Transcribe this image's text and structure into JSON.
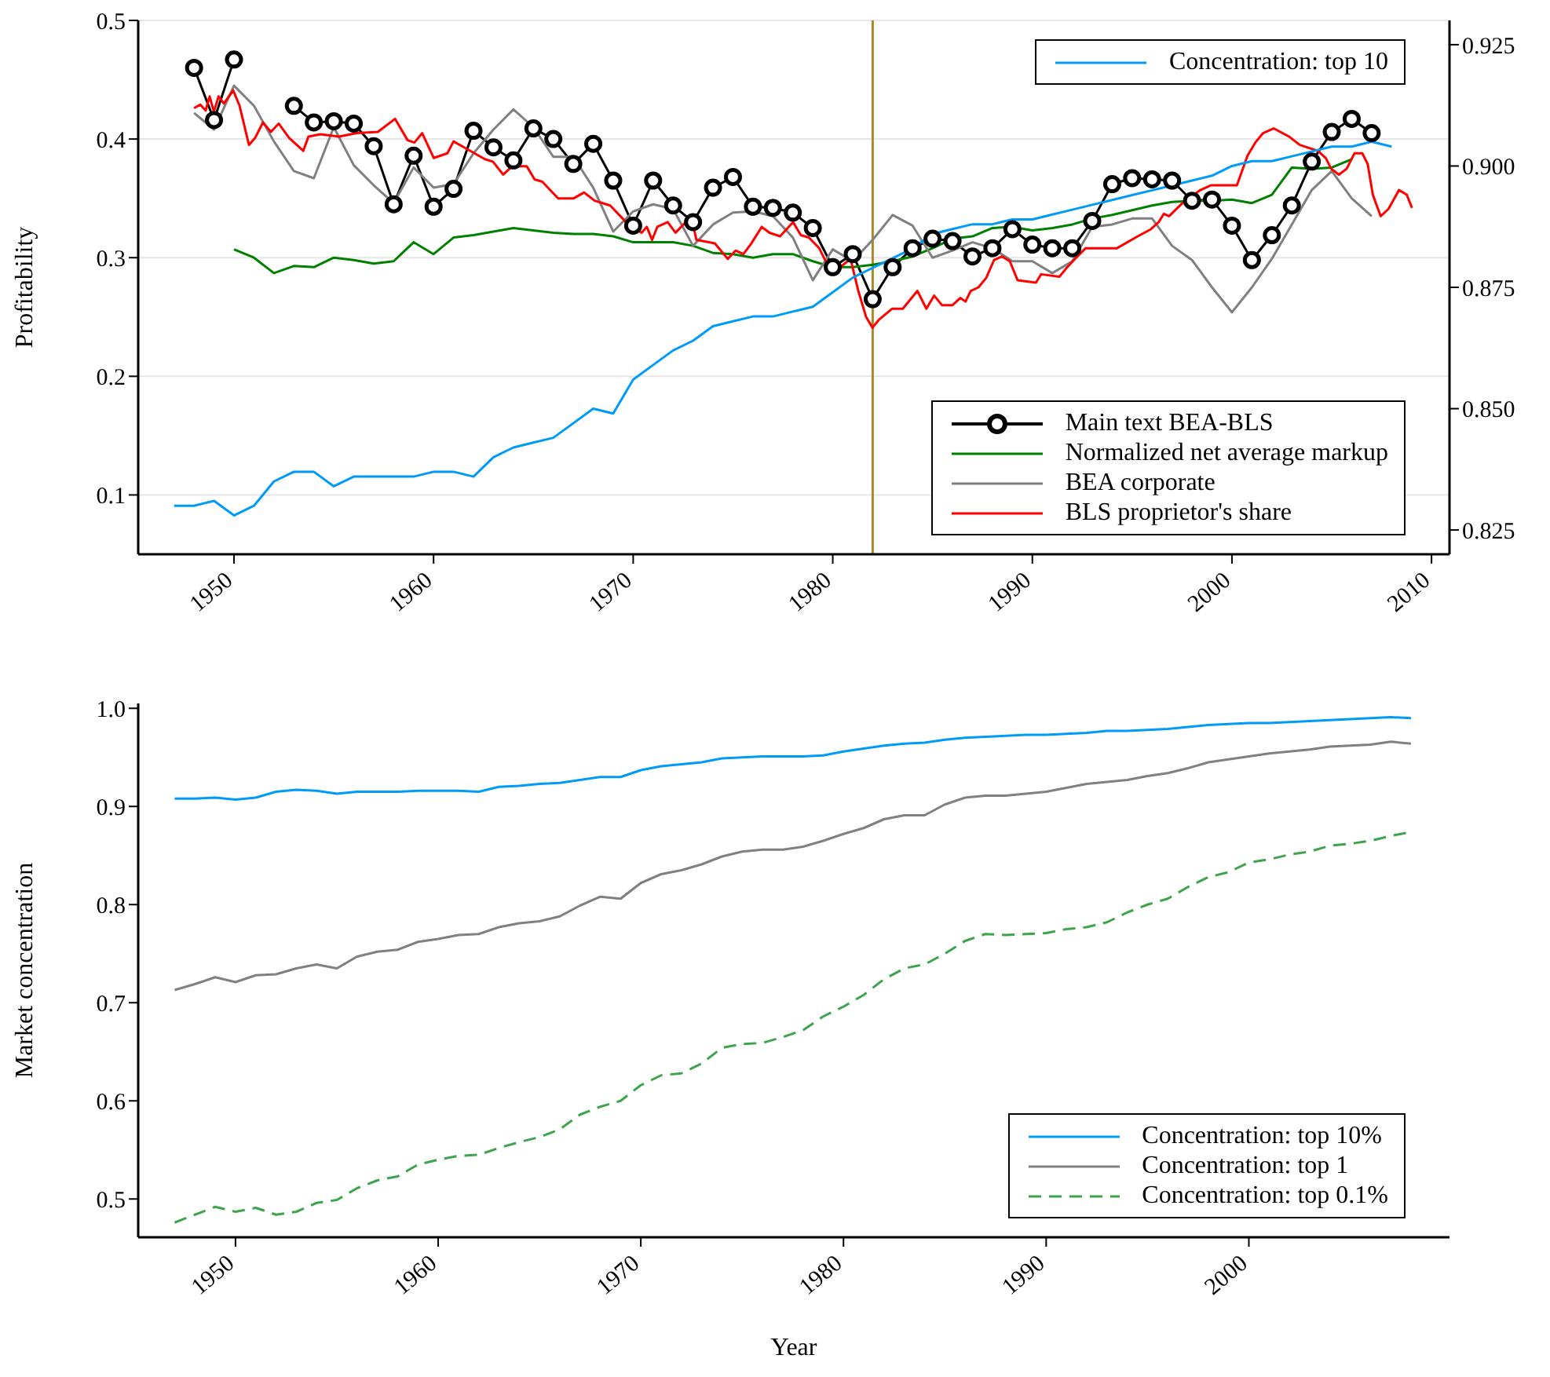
{
  "chart_data": [
    {
      "type": "line",
      "ylabel": "Profitability",
      "xlim": [
        1945.2,
        2010.9
      ],
      "xticks": [
        1950,
        1960,
        1970,
        1980,
        1990,
        2000,
        2010
      ],
      "ylim": [
        0.05,
        0.5
      ],
      "yticks": [
        0.1,
        0.2,
        0.3,
        0.4,
        0.5
      ],
      "y2lim": [
        0.82,
        0.93
      ],
      "y2ticks": [
        0.825,
        {
          "value": 0.85,
          "label": "0.850"
        },
        0.875,
        {
          "value": 0.9,
          "label": "0.900"
        },
        0.925
      ],
      "grid": "y",
      "legend": "bottom right",
      "ref_lines": [
        {
          "axis": "x",
          "value": 1982,
          "color": "#a8892c"
        }
      ],
      "series": [
        {
          "name": "Main text BEA-BLS",
          "color": "#000000",
          "marker": "circle",
          "x": [
            1948,
            1949,
            1950,
            1951,
            1952,
            1953,
            1954,
            1955,
            1956,
            1957,
            1958,
            1959,
            1960,
            1961,
            1962,
            1963,
            1964,
            1965,
            1966,
            1967,
            1968,
            1969,
            1970,
            1971,
            1972,
            1973,
            1974,
            1975,
            1976,
            1977,
            1978,
            1979,
            1980,
            1981,
            1982,
            1983,
            1984,
            1985,
            1986,
            1987,
            1988,
            1989,
            1990,
            1991,
            1992,
            1993,
            1994,
            1995,
            1996,
            1997,
            1998,
            1999,
            2000,
            2001,
            2002,
            2003,
            2004,
            2005,
            2006,
            2007
          ],
          "values": [
            0.46,
            0.416,
            0.467,
            null,
            null,
            0.428,
            0.414,
            0.415,
            0.413,
            0.394,
            0.345,
            0.386,
            0.343,
            0.358,
            0.407,
            0.393,
            0.382,
            0.409,
            0.4,
            0.379,
            0.396,
            0.365,
            0.327,
            0.365,
            0.344,
            0.33,
            0.359,
            0.368,
            0.343,
            0.342,
            0.338,
            0.325,
            0.292,
            0.303,
            0.265,
            0.292,
            0.308,
            0.316,
            0.314,
            0.301,
            0.308,
            0.324,
            0.311,
            0.308,
            0.308,
            0.331,
            0.362,
            0.367,
            0.366,
            0.365,
            0.348,
            0.349,
            0.327,
            0.298,
            0.319,
            0.344,
            0.381,
            0.406,
            0.417,
            0.405
          ]
        },
        {
          "name": "Normalized net average markup",
          "color": "#008000",
          "x": [
            1950,
            1951,
            1952,
            1953,
            1954,
            1955,
            1956,
            1957,
            1958,
            1959,
            1960,
            1961,
            1962,
            1963,
            1964,
            1965,
            1966,
            1967,
            1968,
            1969,
            1970,
            1971,
            1972,
            1973,
            1974,
            1975,
            1976,
            1977,
            1978,
            1979,
            1980,
            1981,
            1982,
            1983,
            1984,
            1985,
            1986,
            1987,
            1988,
            1989,
            1990,
            1991,
            1992,
            1993,
            1994,
            1995,
            1996,
            1997,
            1998,
            1999,
            2000,
            2001,
            2002,
            2003,
            2004,
            2005,
            2006
          ],
          "values": [
            0.307,
            0.3,
            0.287,
            0.293,
            0.292,
            0.3,
            0.298,
            0.295,
            0.297,
            0.313,
            0.303,
            0.317,
            0.319,
            0.322,
            0.325,
            0.323,
            0.321,
            0.32,
            0.32,
            0.318,
            0.313,
            0.313,
            0.313,
            0.31,
            0.304,
            0.303,
            0.3,
            0.303,
            0.303,
            0.297,
            0.292,
            0.292,
            0.294,
            0.297,
            0.301,
            0.308,
            0.316,
            0.318,
            0.325,
            0.326,
            0.323,
            0.325,
            0.328,
            0.333,
            0.336,
            0.34,
            0.344,
            0.347,
            0.348,
            0.348,
            0.349,
            0.346,
            0.353,
            0.376,
            0.375,
            0.376,
            0.383
          ]
        },
        {
          "name": "BEA corporate",
          "color": "#808080",
          "x": [
            1948,
            1949,
            1950,
            1951,
            1952,
            1953,
            1954,
            1955,
            1956,
            1957,
            1958,
            1959,
            1960,
            1961,
            1962,
            1963,
            1964,
            1965,
            1966,
            1967,
            1968,
            1969,
            1970,
            1971,
            1972,
            1973,
            1974,
            1975,
            1976,
            1977,
            1978,
            1979,
            1980,
            1981,
            1982,
            1983,
            1984,
            1985,
            1986,
            1987,
            1988,
            1989,
            1990,
            1991,
            1992,
            1993,
            1994,
            1995,
            1996,
            1997,
            1998,
            1999,
            2000,
            2001,
            2002,
            2003,
            2004,
            2005,
            2006,
            2007
          ],
          "values": [
            0.422,
            0.408,
            0.445,
            0.428,
            0.398,
            0.373,
            0.367,
            0.41,
            0.378,
            0.361,
            0.346,
            0.376,
            0.359,
            0.362,
            0.388,
            0.408,
            0.425,
            0.41,
            0.385,
            0.385,
            0.359,
            0.322,
            0.339,
            0.345,
            0.341,
            0.31,
            0.328,
            0.338,
            0.339,
            0.335,
            0.317,
            0.281,
            0.307,
            0.297,
            0.315,
            0.336,
            0.327,
            0.3,
            0.306,
            0.313,
            0.308,
            0.297,
            0.297,
            0.287,
            0.297,
            0.326,
            0.328,
            0.333,
            0.333,
            0.31,
            0.298,
            0.275,
            0.254,
            0.275,
            0.299,
            0.328,
            0.357,
            0.373,
            0.35,
            0.335
          ]
        },
        {
          "name": "BLS proprietor's share",
          "color": "#ff0000",
          "x": [
            1948.0,
            1948.31,
            1948.58,
            1948.78,
            1948.99,
            1949.23,
            1949.49,
            1949.96,
            1950.28,
            1950.75,
            1951.06,
            1951.45,
            1951.85,
            1952.24,
            1952.76,
            1953.47,
            1953.73,
            1954.33,
            1955.25,
            1956.16,
            1957.21,
            1958.07,
            1958.7,
            1959.04,
            1959.43,
            1960.01,
            1960.69,
            1961.0,
            1961.53,
            1962.57,
            1962.97,
            1963.49,
            1963.93,
            1964.67,
            1965.06,
            1965.45,
            1966.24,
            1967.02,
            1967.54,
            1968.07,
            1968.85,
            1969.64,
            1970.42,
            1970.68,
            1970.95,
            1971.21,
            1971.73,
            1972.12,
            1972.52,
            1972.91,
            1973.17,
            1974.09,
            1974.74,
            1975.13,
            1975.52,
            1975.92,
            1976.44,
            1976.83,
            1977.36,
            1978.01,
            1978.4,
            1978.8,
            1979.32,
            1979.97,
            1980.37,
            1980.89,
            1981.28,
            1981.67,
            1981.99,
            1982.33,
            1982.98,
            1983.51,
            1984.24,
            1984.69,
            1985.08,
            1985.47,
            1986.0,
            1986.39,
            1986.65,
            1986.91,
            1987.3,
            1987.69,
            1988.08,
            1988.48,
            1988.87,
            1989.26,
            1990.18,
            1990.44,
            1991.36,
            1991.75,
            1992.14,
            1992.67,
            1994.24,
            1995.28,
            1995.94,
            1996.33,
            1996.59,
            1996.85,
            1997.64,
            1998.42,
            1998.94,
            2000.25,
            2000.78,
            2001.17,
            2001.56,
            2002.09,
            2002.87,
            2003.4,
            2004.31,
            2004.7,
            2004.97,
            2005.36,
            2005.75,
            2006.14,
            2006.53,
            2006.8,
            2007.06,
            2007.45,
            2007.84,
            2008.37,
            2008.76,
            2009.02
          ],
          "values": [
            0.426,
            0.429,
            0.424,
            0.436,
            0.423,
            0.436,
            0.43,
            0.441,
            0.428,
            0.395,
            0.401,
            0.414,
            0.406,
            0.413,
            0.401,
            0.39,
            0.402,
            0.404,
            0.402,
            0.405,
            0.406,
            0.417,
            0.399,
            0.397,
            0.405,
            0.384,
            0.388,
            0.398,
            0.393,
            0.383,
            0.381,
            0.37,
            0.377,
            0.377,
            0.366,
            0.364,
            0.35,
            0.35,
            0.355,
            0.348,
            0.344,
            0.33,
            0.321,
            0.326,
            0.315,
            0.326,
            0.33,
            0.321,
            0.328,
            0.335,
            0.315,
            0.312,
            0.299,
            0.306,
            0.303,
            0.312,
            0.326,
            0.321,
            0.318,
            0.33,
            0.319,
            0.317,
            0.308,
            0.286,
            0.292,
            0.299,
            0.272,
            0.25,
            0.241,
            0.248,
            0.257,
            0.257,
            0.272,
            0.257,
            0.268,
            0.26,
            0.26,
            0.266,
            0.263,
            0.272,
            0.275,
            0.283,
            0.298,
            0.301,
            0.297,
            0.281,
            0.279,
            0.286,
            0.284,
            0.292,
            0.299,
            0.308,
            0.308,
            0.318,
            0.324,
            0.33,
            0.337,
            0.335,
            0.348,
            0.357,
            0.361,
            0.361,
            0.386,
            0.397,
            0.405,
            0.409,
            0.402,
            0.395,
            0.39,
            0.384,
            0.375,
            0.37,
            0.375,
            0.388,
            0.388,
            0.379,
            0.353,
            0.335,
            0.341,
            0.357,
            0.353,
            0.342
          ]
        },
        {
          "name": "Concentration: top 10",
          "color": "#009af9",
          "axis": "y2",
          "x": [
            1947,
            1948,
            1949,
            1950,
            1951,
            1952,
            1953,
            1954,
            1955,
            1956,
            1957,
            1958,
            1959,
            1960,
            1961,
            1962,
            1963,
            1964,
            1965,
            1966,
            1967,
            1968,
            1969,
            1970,
            1971,
            1972,
            1973,
            1974,
            1975,
            1976,
            1977,
            1978,
            1979,
            1980,
            1981,
            1982,
            1983,
            1984,
            1985,
            1986,
            1987,
            1988,
            1989,
            1990,
            1991,
            1992,
            1993,
            1994,
            1995,
            1996,
            1997,
            1998,
            1999,
            2000,
            2001,
            2002,
            2003,
            2004,
            2005,
            2006,
            2007,
            2008
          ],
          "values": [
            0.83,
            0.83,
            0.831,
            0.828,
            0.83,
            0.835,
            0.837,
            0.837,
            0.834,
            0.836,
            0.836,
            0.836,
            0.836,
            0.837,
            0.837,
            0.836,
            0.84,
            0.842,
            0.843,
            0.844,
            0.847,
            0.85,
            0.849,
            0.856,
            0.859,
            0.862,
            0.864,
            0.867,
            0.868,
            0.869,
            0.869,
            0.87,
            0.871,
            0.874,
            0.877,
            0.879,
            0.881,
            0.883,
            0.886,
            0.887,
            0.888,
            0.888,
            0.889,
            0.889,
            0.89,
            0.891,
            0.892,
            0.893,
            0.894,
            0.895,
            0.896,
            0.897,
            0.898,
            0.9,
            0.901,
            0.901,
            0.902,
            0.903,
            0.904,
            0.904,
            0.905,
            0.904
          ]
        }
      ]
    },
    {
      "type": "line",
      "xlabel": "Year",
      "ylabel": "Market concentration",
      "xlim": [
        1945.2,
        2009.9
      ],
      "xticks": [
        1950,
        1960,
        1970,
        1980,
        1990,
        2000
      ],
      "ylim": [
        0.461,
        1.005
      ],
      "yticks": [
        0.5,
        0.6,
        0.7,
        0.8,
        0.9,
        {
          "value": 1,
          "label": "1.0"
        }
      ],
      "legend": "bottom right",
      "x": [
        1947,
        1948,
        1949,
        1950,
        1951,
        1952,
        1953,
        1954,
        1955,
        1956,
        1957,
        1958,
        1959,
        1960,
        1961,
        1962,
        1963,
        1964,
        1965,
        1966,
        1967,
        1968,
        1969,
        1970,
        1971,
        1972,
        1973,
        1974,
        1975,
        1976,
        1977,
        1978,
        1979,
        1980,
        1981,
        1982,
        1983,
        1984,
        1985,
        1986,
        1987,
        1988,
        1989,
        1990,
        1991,
        1992,
        1993,
        1994,
        1995,
        1996,
        1997,
        1998,
        1999,
        2000,
        2001,
        2002,
        2003,
        2004,
        2005,
        2006,
        2007,
        2008
      ],
      "series": [
        {
          "name": "Concentration: top 10%",
          "color": "#009af9",
          "values": [
            0.908,
            0.908,
            0.909,
            0.907,
            0.909,
            0.915,
            0.917,
            0.916,
            0.913,
            0.915,
            0.915,
            0.915,
            0.916,
            0.916,
            0.916,
            0.915,
            0.92,
            0.921,
            0.923,
            0.924,
            0.927,
            0.93,
            0.93,
            0.937,
            0.941,
            0.943,
            0.945,
            0.949,
            0.95,
            0.951,
            0.951,
            0.951,
            0.952,
            0.956,
            0.959,
            0.962,
            0.964,
            0.965,
            0.968,
            0.97,
            0.971,
            0.972,
            0.973,
            0.973,
            0.974,
            0.975,
            0.977,
            0.977,
            0.978,
            0.979,
            0.981,
            0.983,
            0.984,
            0.985,
            0.985,
            0.986,
            0.987,
            0.988,
            0.989,
            0.99,
            0.991,
            0.99
          ]
        },
        {
          "name": "Concentration: top 1",
          "color": "#808080",
          "values": [
            0.713,
            0.719,
            0.726,
            0.721,
            0.728,
            0.729,
            0.735,
            0.739,
            0.735,
            0.747,
            0.752,
            0.754,
            0.762,
            0.765,
            0.769,
            0.77,
            0.777,
            0.781,
            0.783,
            0.788,
            0.799,
            0.808,
            0.806,
            0.822,
            0.831,
            0.835,
            0.841,
            0.849,
            0.854,
            0.856,
            0.856,
            0.859,
            0.865,
            0.872,
            0.878,
            0.887,
            0.891,
            0.891,
            0.902,
            0.909,
            0.911,
            0.911,
            0.913,
            0.915,
            0.919,
            0.923,
            0.925,
            0.927,
            0.931,
            0.934,
            0.939,
            0.945,
            0.948,
            0.951,
            0.954,
            0.956,
            0.958,
            0.961,
            0.962,
            0.963,
            0.966,
            0.964
          ]
        },
        {
          "name": "Concentration: top 0.1%",
          "color": "#3da44d",
          "line_style": "dashed",
          "values": [
            0.476,
            0.484,
            0.492,
            0.487,
            0.491,
            0.484,
            0.487,
            0.496,
            0.499,
            0.511,
            0.519,
            0.523,
            0.535,
            0.54,
            0.544,
            0.545,
            0.552,
            0.558,
            0.563,
            0.571,
            0.586,
            0.594,
            0.6,
            0.616,
            0.626,
            0.628,
            0.638,
            0.654,
            0.658,
            0.659,
            0.665,
            0.672,
            0.686,
            0.696,
            0.708,
            0.724,
            0.735,
            0.739,
            0.75,
            0.763,
            0.77,
            0.769,
            0.77,
            0.771,
            0.775,
            0.777,
            0.782,
            0.792,
            0.8,
            0.806,
            0.818,
            0.828,
            0.833,
            0.843,
            0.846,
            0.851,
            0.854,
            0.86,
            0.862,
            0.865,
            0.87,
            0.874
          ]
        }
      ]
    }
  ]
}
